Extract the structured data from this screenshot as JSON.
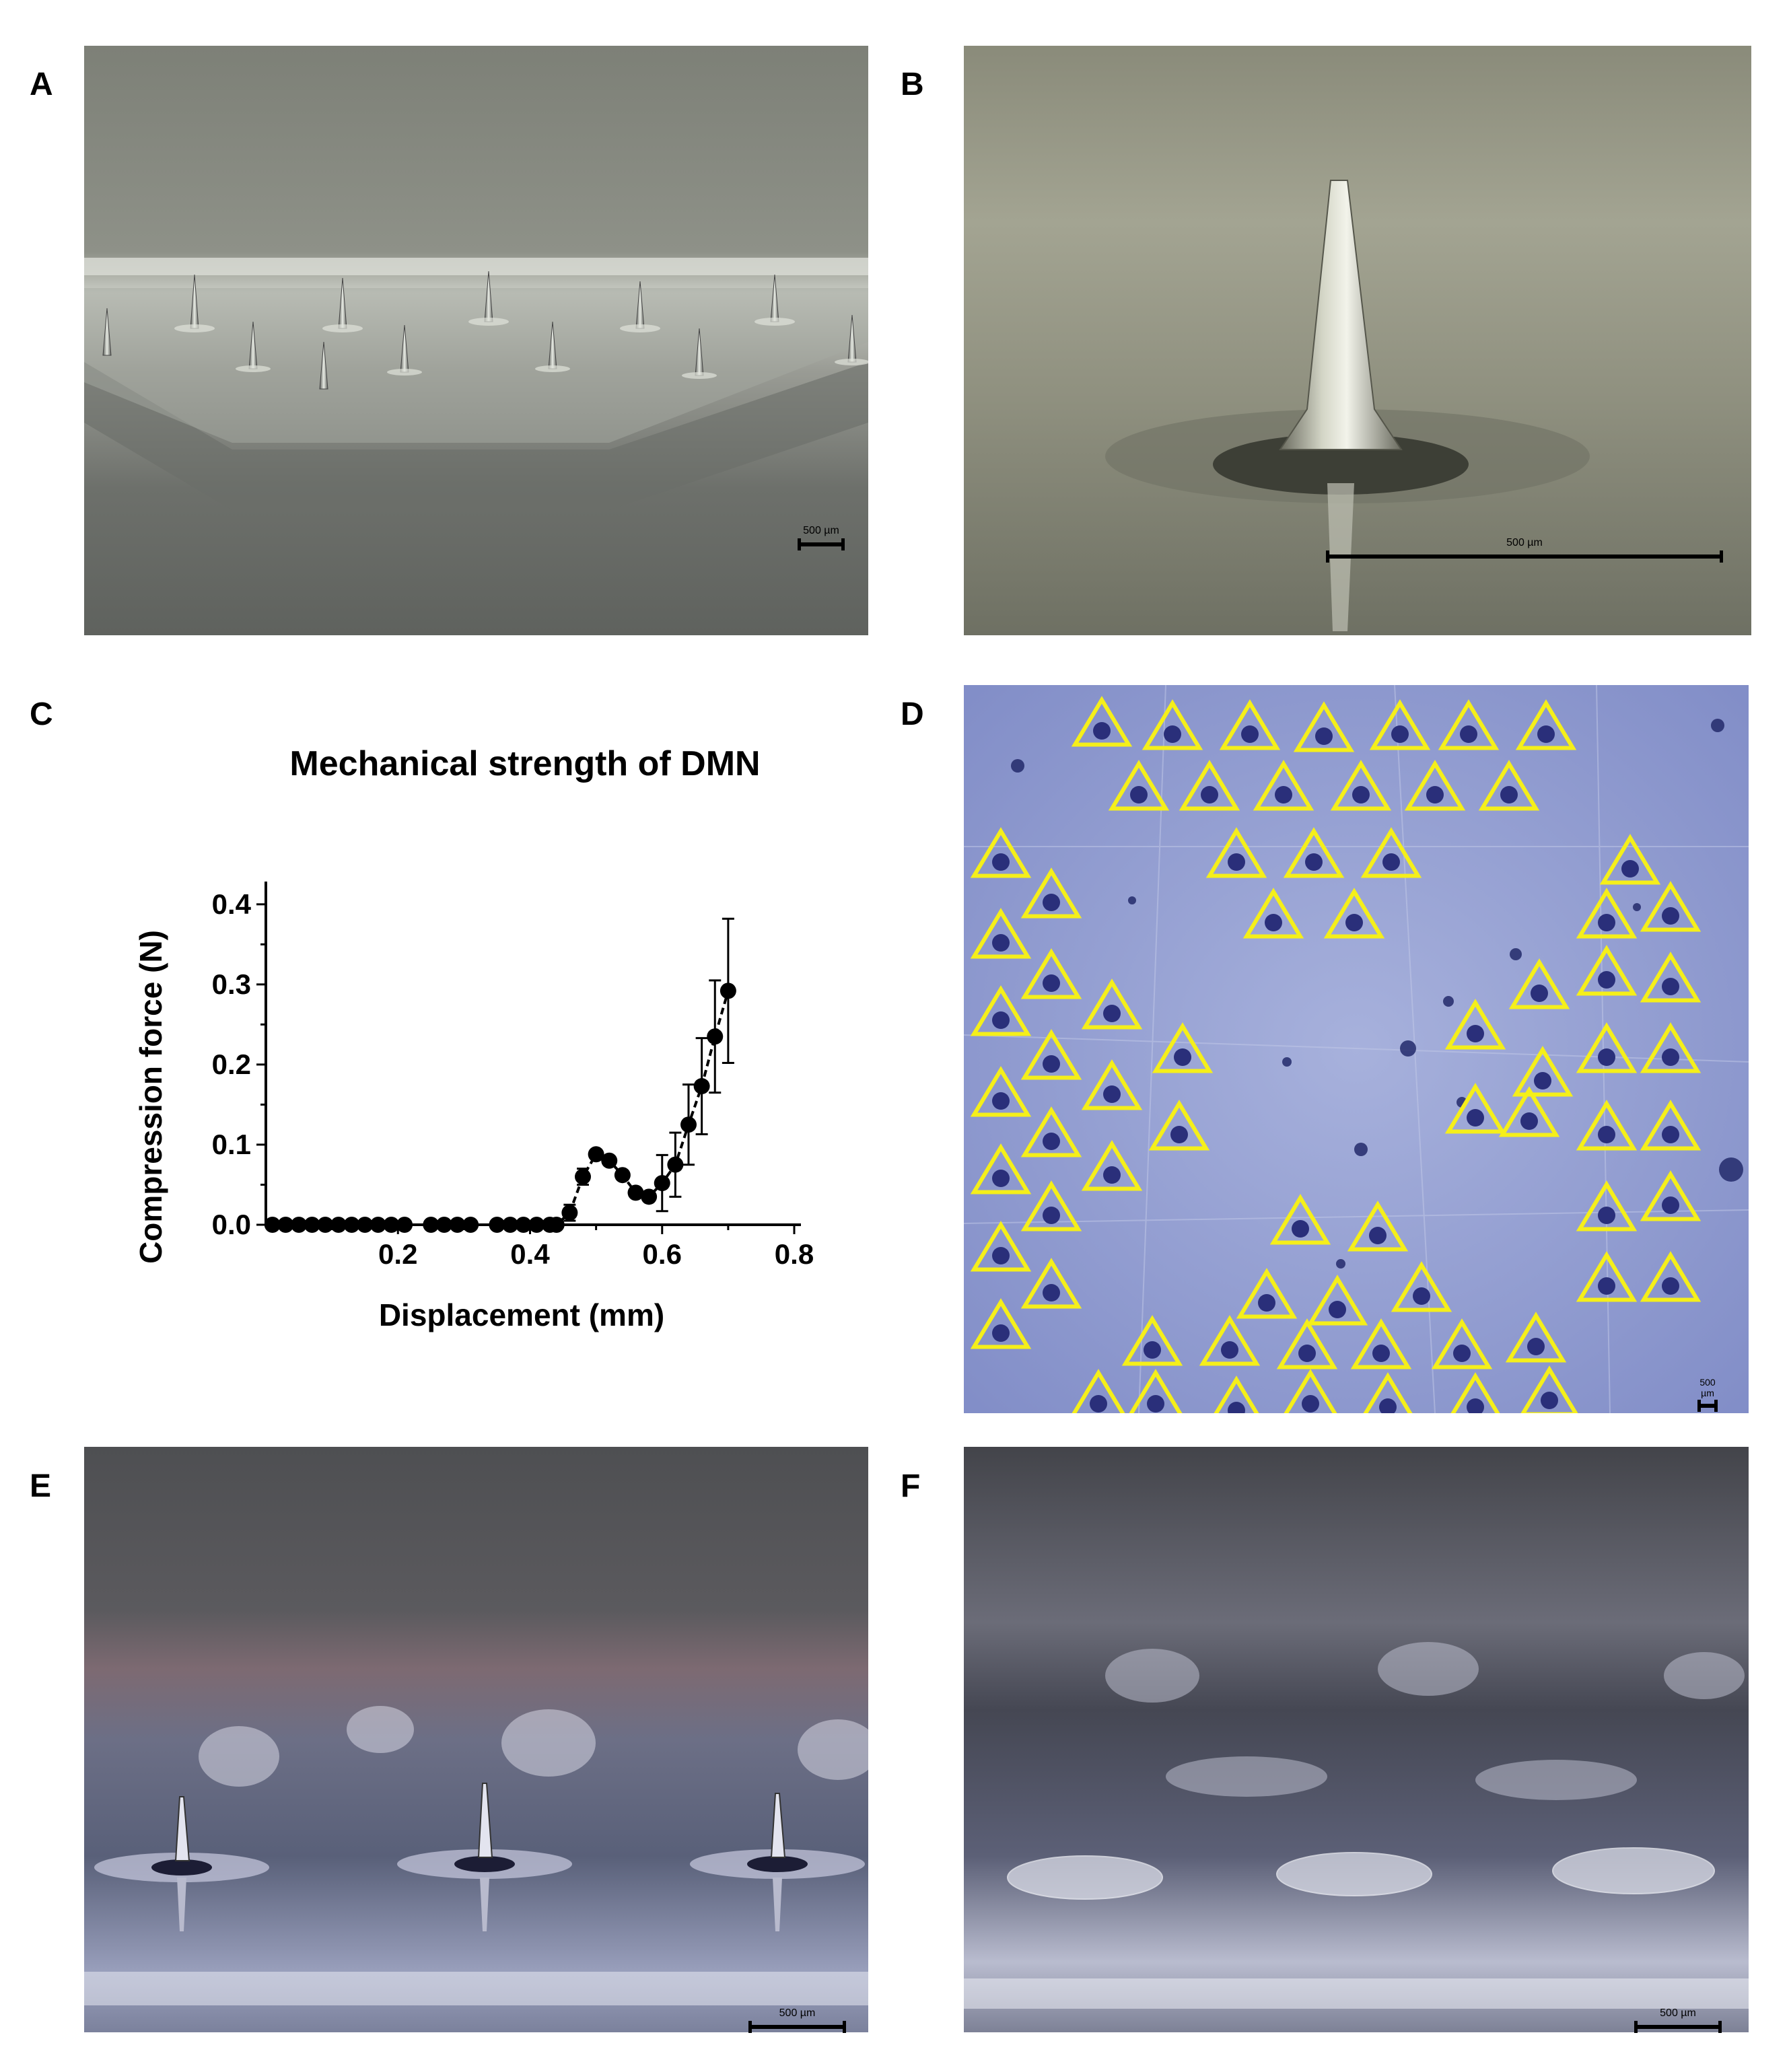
{
  "panels": {
    "A": {
      "letter": "A",
      "scale_label": "500 µm"
    },
    "B": {
      "letter": "B",
      "scale_label": "500 µm"
    },
    "C": {
      "letter": "C"
    },
    "D": {
      "letter": "D",
      "scale_label": "500 µm"
    },
    "E": {
      "letter": "E",
      "scale_label": "500 µm"
    },
    "F": {
      "letter": "F",
      "scale_label": "500 µm"
    }
  },
  "colors": {
    "triangle": "#f5ef1a",
    "dye": "#2a2f7a",
    "skin": "#8f9bd0"
  },
  "chart_data": {
    "type": "scatter",
    "title": "Mechanical strength of DMN",
    "xlabel": "Displacement (mm)",
    "ylabel": "Compression force (N)",
    "xlim": [
      0,
      0.8
    ],
    "ylim": [
      0,
      0.42
    ],
    "xticks": [
      "0.2",
      "0.4",
      "0.6",
      "0.8"
    ],
    "yticks": [
      "0.0",
      "0.1",
      "0.2",
      "0.3",
      "0.4"
    ],
    "series": [
      {
        "x": [
          0.01,
          0.03,
          0.05,
          0.07,
          0.09,
          0.11,
          0.13,
          0.15,
          0.17,
          0.19,
          0.21,
          0.25,
          0.27,
          0.29,
          0.31,
          0.35,
          0.37,
          0.39,
          0.41,
          0.43,
          0.44,
          0.46,
          0.48,
          0.5,
          0.52,
          0.54,
          0.56,
          0.58,
          0.6,
          0.62,
          0.64,
          0.66,
          0.68,
          0.7
        ],
        "y": [
          0,
          0,
          0,
          0,
          0,
          0,
          0,
          0,
          0,
          0,
          0,
          0,
          0,
          0,
          0,
          0,
          0,
          0,
          0,
          0,
          0,
          0.015,
          0.06,
          0.088,
          0.08,
          0.062,
          0.04,
          0.035,
          0.052,
          0.075,
          0.125,
          0.173,
          0.235,
          0.292
        ],
        "err": [
          0,
          0,
          0,
          0,
          0,
          0,
          0,
          0,
          0,
          0,
          0,
          0,
          0,
          0,
          0,
          0,
          0,
          0,
          0,
          0,
          0,
          0.01,
          0.01,
          0,
          0,
          0,
          0,
          0,
          0.035,
          0.04,
          0.05,
          0.06,
          0.07,
          0.09
        ]
      }
    ]
  }
}
